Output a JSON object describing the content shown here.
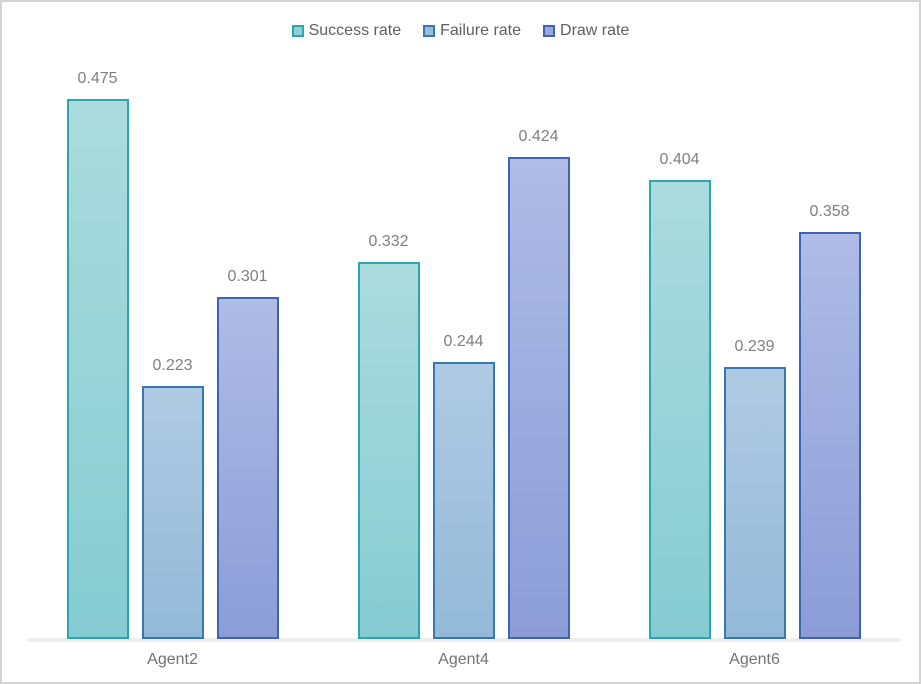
{
  "chart_data": {
    "type": "bar",
    "title": "",
    "xlabel": "",
    "ylabel": "",
    "categories": [
      "Agent2",
      "Agent4",
      "Agent6"
    ],
    "series": [
      {
        "name": "Success rate",
        "values": [
          0.475,
          0.332,
          0.404
        ],
        "border": "#2BA5AE",
        "fill_top": "#ACDBDE",
        "fill_bottom": "#85CCD2",
        "fill_swatch": "#8FCFD4"
      },
      {
        "name": "Failure rate",
        "values": [
          0.223,
          0.244,
          0.239
        ],
        "border": "#3778B3",
        "fill_top": "#AFCAE3",
        "fill_bottom": "#94B9D8",
        "fill_swatch": "#9CBEDC"
      },
      {
        "name": "Draw rate",
        "values": [
          0.301,
          0.424,
          0.358
        ],
        "border": "#3E63B2",
        "fill_top": "#AFBCE6",
        "fill_bottom": "#8C9CD7",
        "fill_swatch": "#98A7DC"
      }
    ],
    "ylim": [
      0,
      0.5
    ],
    "value_labels": true,
    "value_label_decimals": 3,
    "legend_position": "top",
    "grid": false,
    "axis_line_color": "#EEEEEE",
    "value_label_color": "#7F7F7F",
    "category_label_color": "#737373",
    "legend_text_color": "#5F5F5F",
    "frame_border_color": "#D3D3D3"
  }
}
